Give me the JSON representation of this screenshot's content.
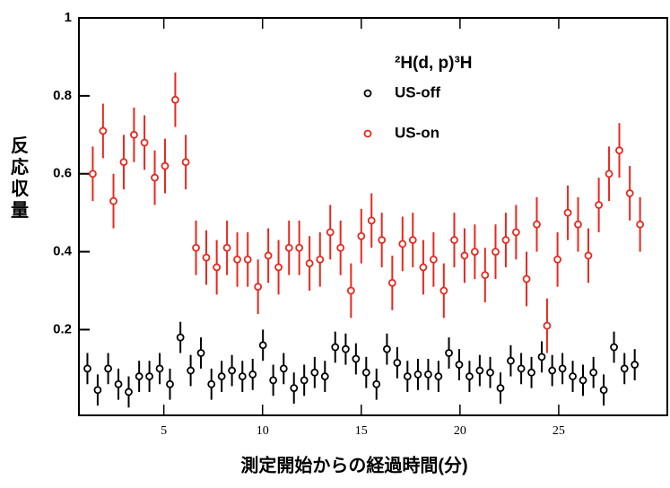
{
  "chart_data": {
    "type": "scatter",
    "legend_title": "²H(d, p)³H",
    "x_label": "測定開始からの経過時間(分)",
    "y_label": "反応収量",
    "xlim": [
      0.7,
      30.5
    ],
    "xticks": [
      5,
      10,
      15,
      20,
      25
    ],
    "ylim": [
      -0.02,
      1
    ],
    "yticks": [
      0.2,
      0.4,
      0.6,
      0.8,
      1
    ],
    "legend": "upper right",
    "series": [
      {
        "name": "US-off",
        "color": "#000000",
        "error": 0.04,
        "x": [
          1.13,
          1.65,
          2.18,
          2.7,
          3.22,
          3.75,
          4.27,
          4.79,
          5.31,
          5.84,
          6.36,
          6.88,
          7.41,
          7.93,
          8.45,
          8.98,
          9.5,
          10.02,
          10.54,
          11.07,
          11.59,
          12.11,
          12.64,
          13.16,
          13.68,
          14.21,
          14.73,
          15.25,
          15.77,
          16.3,
          16.82,
          17.34,
          17.87,
          18.39,
          18.91,
          19.44,
          19.96,
          20.48,
          21.0,
          21.53,
          22.05,
          22.57,
          23.1,
          23.62,
          24.14,
          24.67,
          25.19,
          25.71,
          26.23,
          26.76,
          27.28,
          27.8,
          28.33,
          28.85
        ],
        "values": [
          0.1,
          0.045,
          0.1,
          0.06,
          0.04,
          0.08,
          0.08,
          0.1,
          0.06,
          0.18,
          0.095,
          0.14,
          0.06,
          0.08,
          0.095,
          0.08,
          0.085,
          0.16,
          0.07,
          0.1,
          0.05,
          0.07,
          0.09,
          0.08,
          0.155,
          0.15,
          0.125,
          0.09,
          0.06,
          0.15,
          0.115,
          0.08,
          0.085,
          0.085,
          0.08,
          0.14,
          0.11,
          0.08,
          0.095,
          0.09,
          0.05,
          0.12,
          0.1,
          0.09,
          0.13,
          0.095,
          0.1,
          0.08,
          0.07,
          0.09,
          0.045,
          0.155,
          0.1,
          0.11
        ]
      },
      {
        "name": "US-on",
        "color": "#e8281e",
        "error": 0.07,
        "x": [
          1.4,
          1.92,
          2.45,
          2.97,
          3.49,
          4.02,
          4.54,
          5.06,
          5.58,
          6.11,
          6.63,
          7.15,
          7.68,
          8.2,
          8.72,
          9.25,
          9.77,
          10.29,
          10.81,
          11.34,
          11.86,
          12.38,
          12.91,
          13.43,
          13.95,
          14.48,
          15.0,
          15.52,
          16.04,
          16.57,
          17.09,
          17.61,
          18.14,
          18.66,
          19.18,
          19.71,
          20.23,
          20.75,
          21.27,
          21.8,
          22.32,
          22.84,
          23.37,
          23.89,
          24.41,
          24.94,
          25.46,
          25.98,
          26.5,
          27.03,
          27.55,
          28.07,
          28.6,
          29.12
        ],
        "values": [
          0.6,
          0.71,
          0.53,
          0.63,
          0.7,
          0.68,
          0.59,
          0.62,
          0.79,
          0.63,
          0.41,
          0.385,
          0.36,
          0.41,
          0.38,
          0.38,
          0.31,
          0.39,
          0.36,
          0.41,
          0.41,
          0.37,
          0.38,
          0.45,
          0.41,
          0.3,
          0.44,
          0.48,
          0.43,
          0.32,
          0.42,
          0.43,
          0.36,
          0.38,
          0.3,
          0.43,
          0.39,
          0.4,
          0.34,
          0.4,
          0.43,
          0.45,
          0.33,
          0.47,
          0.21,
          0.38,
          0.5,
          0.47,
          0.39,
          0.52,
          0.6,
          0.66,
          0.55,
          0.47
        ]
      }
    ]
  }
}
